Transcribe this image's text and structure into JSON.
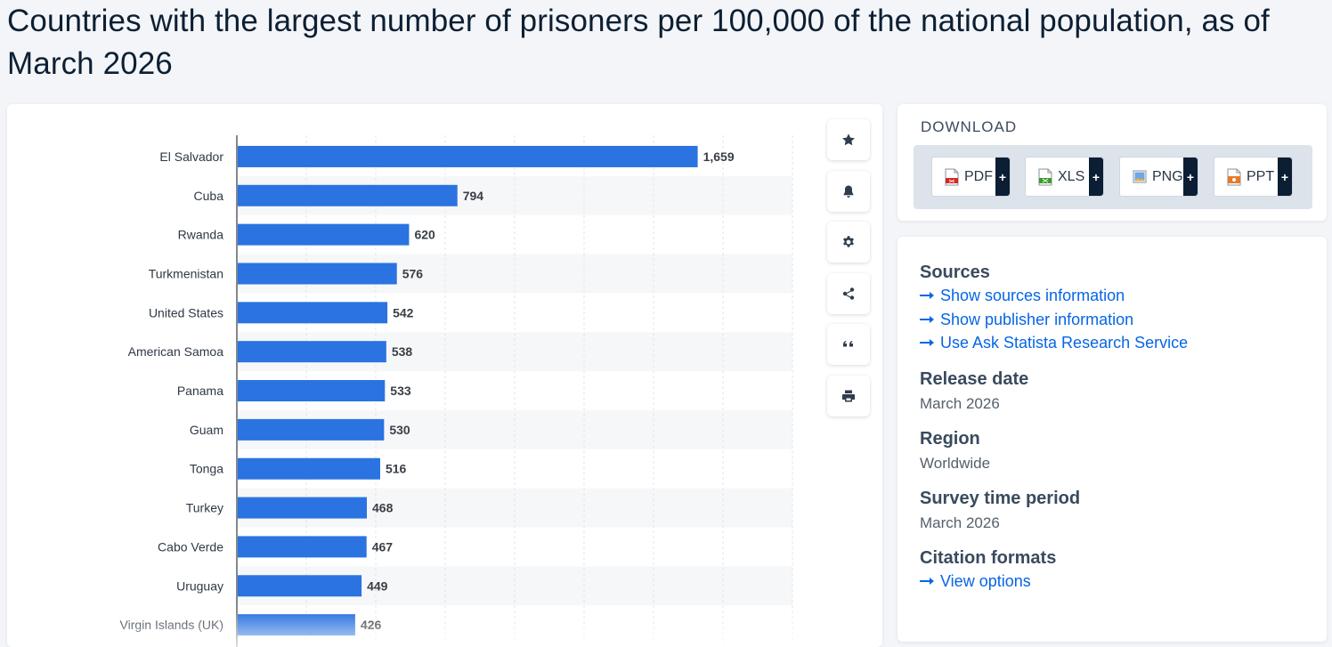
{
  "page": {
    "title": "Countries with the largest number of prisoners per 100,000 of the national population, as of March 2026"
  },
  "colors": {
    "bar": "#2a73e0",
    "accent_link": "#0666e5",
    "dark": "#0b1e33"
  },
  "chart_data": {
    "type": "bar",
    "orientation": "horizontal",
    "title": "Countries with the largest number of prisoners per 100,000 of the national population, as of March 2026",
    "xlabel": "",
    "ylabel": "",
    "xlim": [
      0,
      2000
    ],
    "grid": true,
    "categories": [
      "El Salvador",
      "Cuba",
      "Rwanda",
      "Turkmenistan",
      "United States",
      "American Samoa",
      "Panama",
      "Guam",
      "Tonga",
      "Turkey",
      "Cabo Verde",
      "Uruguay",
      "Virgin Islands (UK)"
    ],
    "values": [
      1659,
      794,
      620,
      576,
      542,
      538,
      533,
      530,
      516,
      468,
      467,
      449,
      426
    ],
    "value_labels": [
      "1,659",
      "794",
      "620",
      "576",
      "542",
      "538",
      "533",
      "530",
      "516",
      "468",
      "467",
      "449",
      "426"
    ]
  },
  "toolbar": {
    "items": [
      {
        "name": "favorite-button",
        "icon": "star-icon"
      },
      {
        "name": "notification-button",
        "icon": "bell-icon"
      },
      {
        "name": "settings-button",
        "icon": "gear-icon"
      },
      {
        "name": "share-button",
        "icon": "share-icon"
      },
      {
        "name": "cite-button",
        "icon": "quote-icon"
      },
      {
        "name": "print-button",
        "icon": "printer-icon"
      }
    ]
  },
  "download": {
    "title": "DOWNLOAD",
    "buttons": [
      {
        "label": "PDF",
        "icon": "pdf-file-icon",
        "plus": "+"
      },
      {
        "label": "XLS",
        "icon": "xls-file-icon",
        "plus": "+"
      },
      {
        "label": "PNG",
        "icon": "png-file-icon",
        "plus": "+"
      },
      {
        "label": "PPT",
        "icon": "ppt-file-icon",
        "plus": "+"
      }
    ]
  },
  "info": {
    "sources": {
      "heading": "Sources",
      "links": [
        "Show sources information",
        "Show publisher information",
        "Use Ask Statista Research Service"
      ]
    },
    "release_date": {
      "heading": "Release date",
      "value": "March 2026"
    },
    "region": {
      "heading": "Region",
      "value": "Worldwide"
    },
    "survey_period": {
      "heading": "Survey time period",
      "value": "March 2026"
    },
    "citation": {
      "heading": "Citation formats",
      "link": "View options"
    }
  }
}
